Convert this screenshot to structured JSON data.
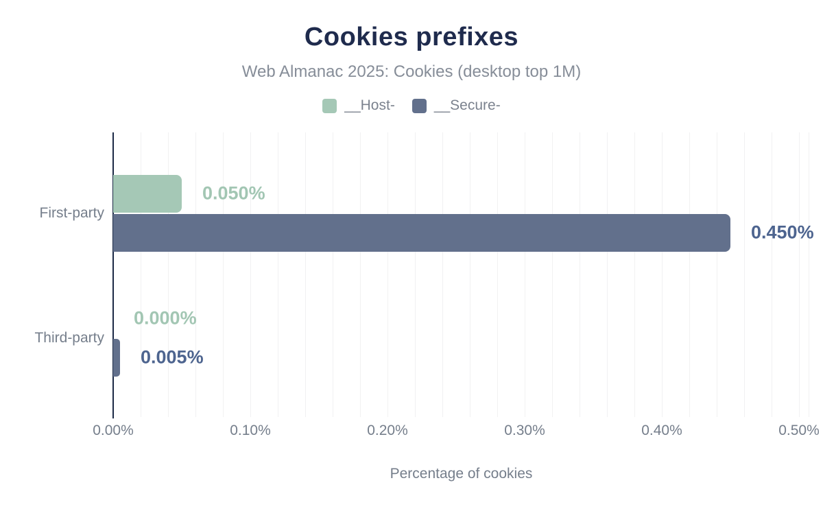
{
  "chart_data": {
    "type": "bar",
    "orientation": "horizontal",
    "title": "Cookies prefixes",
    "subtitle": "Web Almanac 2025: Cookies (desktop top 1M)",
    "xlabel": "Percentage of cookies",
    "categories": [
      "First-party",
      "Third-party"
    ],
    "series": [
      {
        "name": "__Host-",
        "color": "#a5c8b6",
        "label_color": "#a2c6b3",
        "values": [
          0.05,
          0.0
        ],
        "value_labels": [
          "0.050%",
          "0.000%"
        ]
      },
      {
        "name": "__Secure-",
        "color": "#62708c",
        "label_color": "#4d648f",
        "values": [
          0.45,
          0.005
        ],
        "value_labels": [
          "0.450%",
          "0.005%"
        ]
      }
    ],
    "xlim": [
      0,
      0.5
    ],
    "xtick_values": [
      0,
      0.1,
      0.2,
      0.3,
      0.4,
      0.5
    ],
    "xtick_labels": [
      "0.00%",
      "0.10%",
      "0.20%",
      "0.30%",
      "0.40%",
      "0.50%"
    ],
    "minor_gridline_step": 0.02,
    "legend_position": "top",
    "grid": "vertical-minor-only"
  },
  "colors": {
    "background": "#ffffff",
    "title": "#1f2b4d",
    "subtitle": "#868d98",
    "axis_text": "#757e8b",
    "axis_line": "#1b2945",
    "gridline": "#f1f1f2",
    "host_green": "#a5c8b6",
    "secure_slate": "#62708c"
  }
}
